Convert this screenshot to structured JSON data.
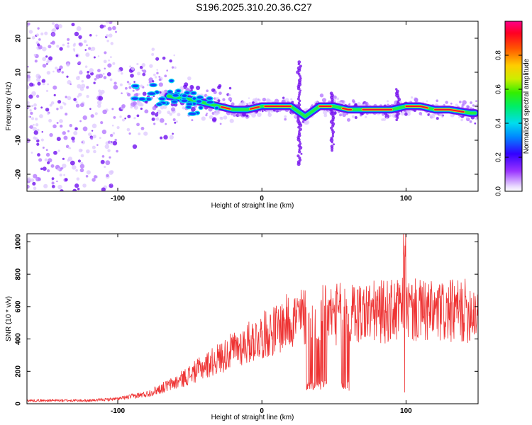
{
  "title": "S196.2025.310.20.36.C27",
  "chart_data": [
    {
      "type": "heatmap",
      "xlabel": "Height of straight line (km)",
      "ylabel": "Frequency (Hz)",
      "xlim": [
        -163,
        150
      ],
      "ylim": [
        -25,
        25
      ],
      "xticks": [
        -100,
        0,
        100
      ],
      "yticks": [
        -20,
        -10,
        0,
        10,
        20
      ],
      "colorbar": {
        "label": "Normalized spectral amplitude",
        "range": [
          0,
          1
        ],
        "ticks": [
          "0.0",
          "0.2",
          "0.4",
          "0.6",
          "0.8"
        ],
        "tick_values": [
          0,
          0.2,
          0.4,
          0.6,
          0.8
        ]
      },
      "main_trace": {
        "x": [
          -65,
          -50,
          -40,
          -30,
          -20,
          -10,
          0,
          10,
          20,
          30,
          40,
          50,
          60,
          70,
          80,
          90,
          100,
          110,
          120,
          130,
          145
        ],
        "freq": [
          3,
          2,
          1,
          0,
          -1,
          -1,
          0,
          0,
          0,
          -3,
          0,
          0,
          -1,
          -1,
          -1,
          -1,
          0,
          0,
          -1,
          -1,
          -2
        ]
      },
      "vertical_streaks": [
        {
          "x": 26,
          "fmin": -17,
          "fmax": 13
        },
        {
          "x": 49,
          "fmin": -13,
          "fmax": 4
        },
        {
          "x": 94,
          "fmin": -4,
          "fmax": 5
        }
      ]
    },
    {
      "type": "line",
      "xlabel": "Height of straight line (km)",
      "ylabel": "SNR (10 * v/v)",
      "xlim": [
        -163,
        150
      ],
      "ylim": [
        0,
        1050
      ],
      "xticks": [
        -100,
        0,
        100
      ],
      "yticks": [
        0,
        200,
        400,
        600,
        800,
        1000
      ],
      "series_color": "#ee3333",
      "trend": {
        "x": [
          -163,
          -120,
          -100,
          -80,
          -60,
          -40,
          -20,
          0,
          10,
          20,
          30,
          60,
          90,
          100,
          120,
          150
        ],
        "y": [
          20,
          20,
          30,
          60,
          130,
          230,
          330,
          420,
          460,
          520,
          540,
          560,
          570,
          580,
          560,
          580
        ]
      },
      "drop_intervals": [
        [
          31,
          37
        ],
        [
          37,
          45
        ],
        [
          55,
          61
        ]
      ],
      "drop_level": 100,
      "spike": {
        "x": 99,
        "y": 1050,
        "min": 70
      }
    }
  ]
}
